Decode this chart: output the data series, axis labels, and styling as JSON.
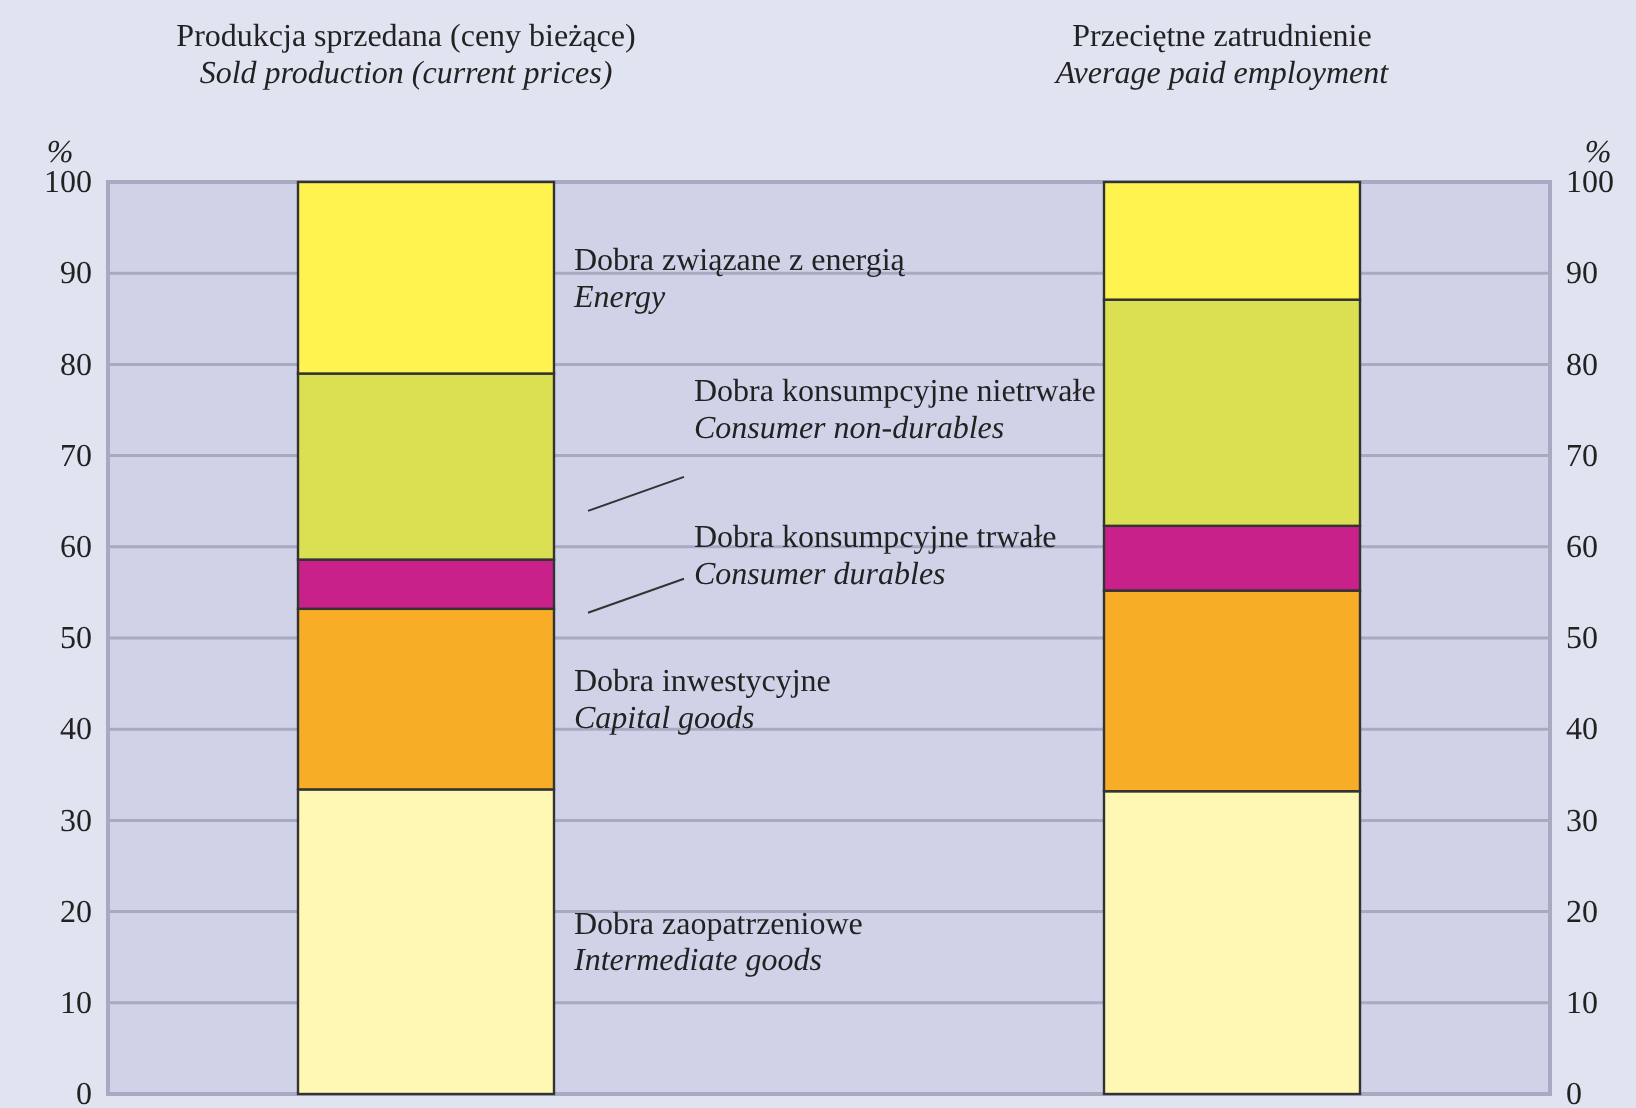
{
  "chart_data": {
    "type": "bar",
    "stacked": true,
    "categories": [
      "Produkcja sprzedana (ceny bieżące)\nSold production (current prices)",
      "Przeciętne zatrudnienie\nAverage paid employment"
    ],
    "series": [
      {
        "name": "Dobra zaopatrzeniowe\nIntermediate goods",
        "color": "#fff8b4",
        "values": [
          33.4,
          33.2
        ]
      },
      {
        "name": "Dobra inwestycyjne\nCapital goods",
        "color": "#f7ad26",
        "values": [
          19.8,
          22.0
        ]
      },
      {
        "name": "Dobra konsumpcyjne trwałe\nConsumer durables",
        "color": "#c8228a",
        "values": [
          5.4,
          7.1
        ]
      },
      {
        "name": "Dobra konsumpcyjne nietrwałe\nConsumer non-durables",
        "color": "#dbe052",
        "values": [
          20.4,
          24.8
        ]
      },
      {
        "name": "Dobra związane z energią\nEnergy",
        "color": "#fff350",
        "values": [
          21.0,
          12.9
        ]
      }
    ],
    "ylabel": "%",
    "y2label": "%",
    "ylim": [
      0,
      100
    ],
    "yticks": [
      0,
      10,
      20,
      30,
      40,
      50,
      60,
      70,
      80,
      90,
      100
    ],
    "y2lim": [
      0,
      100
    ],
    "y2ticks": [
      0,
      10,
      20,
      30,
      40,
      50,
      60,
      70,
      80,
      90,
      100
    ],
    "grid": "y"
  }
}
